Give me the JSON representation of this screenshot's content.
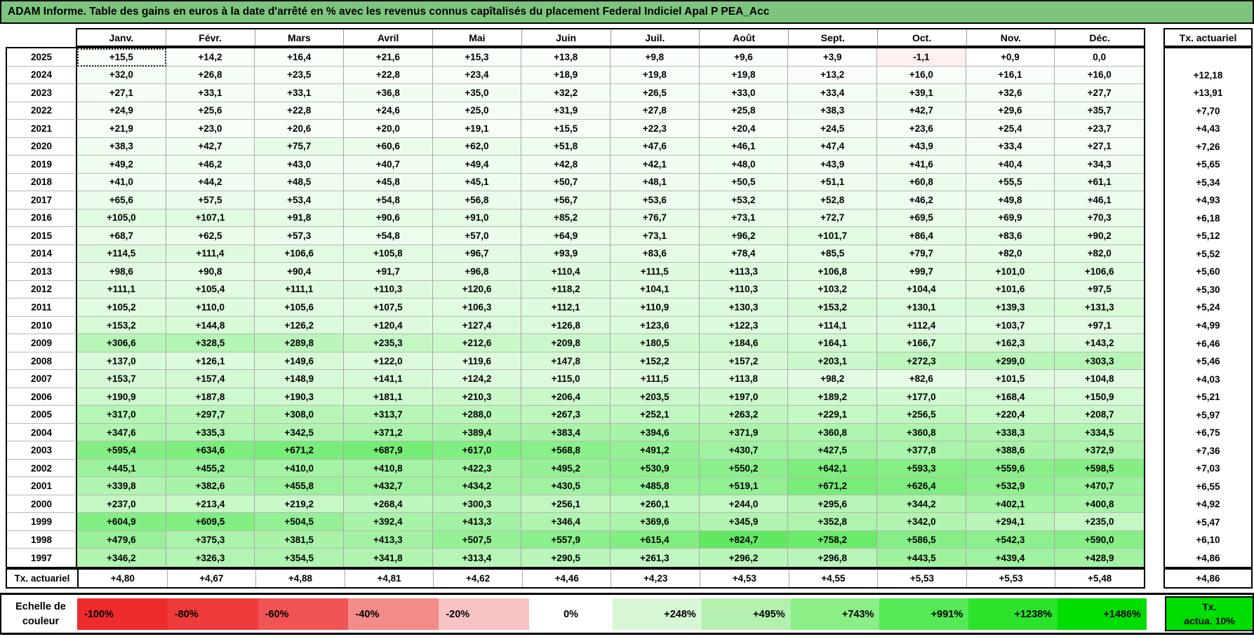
{
  "title": "ADAM Informe. Table des gains en euros à la date d'arrêté en % avec les revenus connus capîtalisés du placement Federal Indiciel Apal P PEA_Acc",
  "months": [
    "Janv.",
    "Févr.",
    "Mars",
    "Avril",
    "Mai",
    "Juin",
    "Juil.",
    "Août",
    "Sept.",
    "Oct.",
    "Nov.",
    "Déc."
  ],
  "tx_column_header": "Tx. actuariel",
  "rows": [
    {
      "year": "2025",
      "values": [
        "+15,5",
        "+14,2",
        "+16,4",
        "+21,6",
        "+15,3",
        "+13,8",
        "+9,8",
        "+9,6",
        "+3,9",
        "-1,1",
        "+0,9",
        "0,0"
      ],
      "tx": ""
    },
    {
      "year": "2024",
      "values": [
        "+32,0",
        "+26,8",
        "+23,5",
        "+22,8",
        "+23,4",
        "+18,9",
        "+19,8",
        "+19,8",
        "+13,2",
        "+16,0",
        "+16,1",
        "+16,0"
      ],
      "tx": "+12,18"
    },
    {
      "year": "2023",
      "values": [
        "+27,1",
        "+33,1",
        "+33,1",
        "+36,8",
        "+35,0",
        "+32,2",
        "+26,5",
        "+33,0",
        "+33,4",
        "+39,1",
        "+32,6",
        "+27,7"
      ],
      "tx": "+13,91"
    },
    {
      "year": "2022",
      "values": [
        "+24,9",
        "+25,6",
        "+22,8",
        "+24,6",
        "+25,0",
        "+31,9",
        "+27,8",
        "+25,8",
        "+38,3",
        "+42,7",
        "+29,6",
        "+35,7"
      ],
      "tx": "+7,70"
    },
    {
      "year": "2021",
      "values": [
        "+21,9",
        "+23,0",
        "+20,6",
        "+20,0",
        "+19,1",
        "+15,5",
        "+22,3",
        "+20,4",
        "+24,5",
        "+23,6",
        "+25,4",
        "+23,7"
      ],
      "tx": "+4,43"
    },
    {
      "year": "2020",
      "values": [
        "+38,3",
        "+42,7",
        "+75,7",
        "+60,6",
        "+62,0",
        "+51,8",
        "+47,6",
        "+46,1",
        "+47,4",
        "+43,9",
        "+33,4",
        "+27,1"
      ],
      "tx": "+7,26"
    },
    {
      "year": "2019",
      "values": [
        "+49,2",
        "+46,2",
        "+43,0",
        "+40,7",
        "+49,4",
        "+42,8",
        "+42,1",
        "+48,0",
        "+43,9",
        "+41,6",
        "+40,4",
        "+34,3"
      ],
      "tx": "+5,65"
    },
    {
      "year": "2018",
      "values": [
        "+41,0",
        "+44,2",
        "+48,5",
        "+45,8",
        "+45,1",
        "+50,7",
        "+48,1",
        "+50,5",
        "+51,1",
        "+60,8",
        "+55,5",
        "+61,1"
      ],
      "tx": "+5,34"
    },
    {
      "year": "2017",
      "values": [
        "+65,6",
        "+57,5",
        "+53,4",
        "+54,8",
        "+56,8",
        "+56,7",
        "+53,6",
        "+53,2",
        "+52,8",
        "+46,2",
        "+49,8",
        "+46,1"
      ],
      "tx": "+4,93"
    },
    {
      "year": "2016",
      "values": [
        "+105,0",
        "+107,1",
        "+91,8",
        "+90,6",
        "+91,0",
        "+85,2",
        "+76,7",
        "+73,1",
        "+72,7",
        "+69,5",
        "+69,9",
        "+70,3"
      ],
      "tx": "+6,18"
    },
    {
      "year": "2015",
      "values": [
        "+68,7",
        "+62,5",
        "+57,3",
        "+54,8",
        "+57,0",
        "+64,9",
        "+73,1",
        "+96,2",
        "+101,7",
        "+86,4",
        "+83,6",
        "+90,2"
      ],
      "tx": "+5,12"
    },
    {
      "year": "2014",
      "values": [
        "+114,5",
        "+111,4",
        "+106,6",
        "+105,8",
        "+96,7",
        "+93,9",
        "+83,6",
        "+78,4",
        "+85,5",
        "+79,7",
        "+82,0",
        "+82,0"
      ],
      "tx": "+5,52"
    },
    {
      "year": "2013",
      "values": [
        "+98,6",
        "+90,8",
        "+90,4",
        "+91,7",
        "+96,8",
        "+110,4",
        "+111,5",
        "+113,3",
        "+106,8",
        "+99,7",
        "+101,0",
        "+106,6"
      ],
      "tx": "+5,60"
    },
    {
      "year": "2012",
      "values": [
        "+111,1",
        "+105,4",
        "+111,1",
        "+110,3",
        "+120,6",
        "+118,2",
        "+104,1",
        "+110,3",
        "+103,2",
        "+104,4",
        "+101,6",
        "+97,5"
      ],
      "tx": "+5,30"
    },
    {
      "year": "2011",
      "values": [
        "+105,2",
        "+110,0",
        "+105,6",
        "+107,5",
        "+106,3",
        "+112,1",
        "+110,9",
        "+130,3",
        "+153,2",
        "+130,1",
        "+139,3",
        "+131,3"
      ],
      "tx": "+5,24"
    },
    {
      "year": "2010",
      "values": [
        "+153,2",
        "+144,8",
        "+126,2",
        "+120,4",
        "+127,4",
        "+126,8",
        "+123,6",
        "+122,3",
        "+114,1",
        "+112,4",
        "+103,7",
        "+97,1"
      ],
      "tx": "+4,99"
    },
    {
      "year": "2009",
      "values": [
        "+306,6",
        "+328,5",
        "+289,8",
        "+235,3",
        "+212,6",
        "+209,8",
        "+180,5",
        "+184,6",
        "+164,1",
        "+166,7",
        "+162,3",
        "+143,2"
      ],
      "tx": "+6,46"
    },
    {
      "year": "2008",
      "values": [
        "+137,0",
        "+126,1",
        "+149,6",
        "+122,0",
        "+119,6",
        "+147,8",
        "+152,2",
        "+157,2",
        "+203,1",
        "+272,3",
        "+299,0",
        "+303,3"
      ],
      "tx": "+5,46"
    },
    {
      "year": "2007",
      "values": [
        "+153,7",
        "+157,4",
        "+148,9",
        "+141,1",
        "+124,2",
        "+115,0",
        "+111,5",
        "+113,8",
        "+98,2",
        "+82,6",
        "+101,5",
        "+104,8"
      ],
      "tx": "+4,03"
    },
    {
      "year": "2006",
      "values": [
        "+190,9",
        "+187,8",
        "+190,3",
        "+181,1",
        "+210,3",
        "+206,4",
        "+203,5",
        "+197,0",
        "+189,2",
        "+177,0",
        "+168,4",
        "+150,9"
      ],
      "tx": "+5,21"
    },
    {
      "year": "2005",
      "values": [
        "+317,0",
        "+297,7",
        "+308,0",
        "+313,7",
        "+288,0",
        "+267,3",
        "+252,1",
        "+263,2",
        "+229,1",
        "+256,5",
        "+220,4",
        "+208,7"
      ],
      "tx": "+5,97"
    },
    {
      "year": "2004",
      "values": [
        "+347,6",
        "+335,3",
        "+342,5",
        "+371,2",
        "+389,4",
        "+383,4",
        "+394,6",
        "+371,9",
        "+360,8",
        "+360,8",
        "+338,3",
        "+334,5"
      ],
      "tx": "+6,75"
    },
    {
      "year": "2003",
      "values": [
        "+595,4",
        "+634,6",
        "+671,2",
        "+687,9",
        "+617,0",
        "+568,8",
        "+491,2",
        "+430,7",
        "+427,5",
        "+377,8",
        "+388,6",
        "+372,9"
      ],
      "tx": "+7,36"
    },
    {
      "year": "2002",
      "values": [
        "+445,1",
        "+455,2",
        "+410,0",
        "+410,8",
        "+422,3",
        "+495,2",
        "+530,9",
        "+550,2",
        "+642,1",
        "+593,3",
        "+559,6",
        "+598,5"
      ],
      "tx": "+7,03"
    },
    {
      "year": "2001",
      "values": [
        "+339,8",
        "+382,6",
        "+455,8",
        "+432,7",
        "+434,2",
        "+430,5",
        "+485,8",
        "+519,1",
        "+671,2",
        "+626,4",
        "+532,9",
        "+470,7"
      ],
      "tx": "+6,55"
    },
    {
      "year": "2000",
      "values": [
        "+237,0",
        "+213,4",
        "+219,2",
        "+268,4",
        "+300,3",
        "+256,1",
        "+260,1",
        "+244,0",
        "+295,6",
        "+344,2",
        "+402,1",
        "+400,8"
      ],
      "tx": "+4,92"
    },
    {
      "year": "1999",
      "values": [
        "+604,9",
        "+609,5",
        "+504,5",
        "+392,4",
        "+413,3",
        "+346,4",
        "+369,6",
        "+345,9",
        "+352,8",
        "+342,0",
        "+294,1",
        "+235,0"
      ],
      "tx": "+5,47"
    },
    {
      "year": "1998",
      "values": [
        "+479,6",
        "+375,3",
        "+381,5",
        "+413,3",
        "+507,5",
        "+557,9",
        "+615,4",
        "+824,7",
        "+758,2",
        "+586,5",
        "+542,3",
        "+590,0"
      ],
      "tx": "+6,10"
    },
    {
      "year": "1997",
      "values": [
        "+346,2",
        "+326,3",
        "+354,5",
        "+341,8",
        "+313,4",
        "+290,5",
        "+261,3",
        "+296,2",
        "+296,8",
        "+443,5",
        "+439,4",
        "+428,9"
      ],
      "tx": "+4,86"
    }
  ],
  "tx_row": {
    "label": "Tx. actuariel",
    "values": [
      "+4,80",
      "+4,67",
      "+4,88",
      "+4,81",
      "+4,62",
      "+4,46",
      "+4,23",
      "+4,53",
      "+4,55",
      "+5,53",
      "+5,53",
      "+5,48"
    ],
    "tx": "+4,86"
  },
  "legend": {
    "label_line1": "Echelle de",
    "label_line2": "couleur",
    "cells": [
      {
        "label": "-100%",
        "color": "#ee2c2c"
      },
      {
        "label": "-80%",
        "color": "#ee3a3a"
      },
      {
        "label": "-60%",
        "color": "#f05454"
      },
      {
        "label": "-40%",
        "color": "#f38b8b"
      },
      {
        "label": "-20%",
        "color": "#f8c3c3"
      },
      {
        "label": "0%",
        "color": "#ffffff"
      },
      {
        "label": "+248%",
        "color": "#d7f6d3"
      },
      {
        "label": "+495%",
        "color": "#b4f0ae"
      },
      {
        "label": "+743%",
        "color": "#8bee86"
      },
      {
        "label": "+991%",
        "color": "#55e955"
      },
      {
        "label": "+1238%",
        "color": "#2ce32c"
      },
      {
        "label": "+1486%",
        "color": "#00dd00"
      }
    ],
    "tx_cell_line1": "Tx.",
    "tx_cell_line2": "actua. 10%",
    "tx_cell_color": "#00dd00"
  },
  "colors": {
    "title_bg": "#7dc57e",
    "positive_max": "#00dc00",
    "negative_max": "#ec2d2d"
  },
  "scale": {
    "positive_full": 1486,
    "negative_full": 30,
    "gamma": 0.8
  },
  "selection": {
    "row": 0,
    "col": 0
  }
}
